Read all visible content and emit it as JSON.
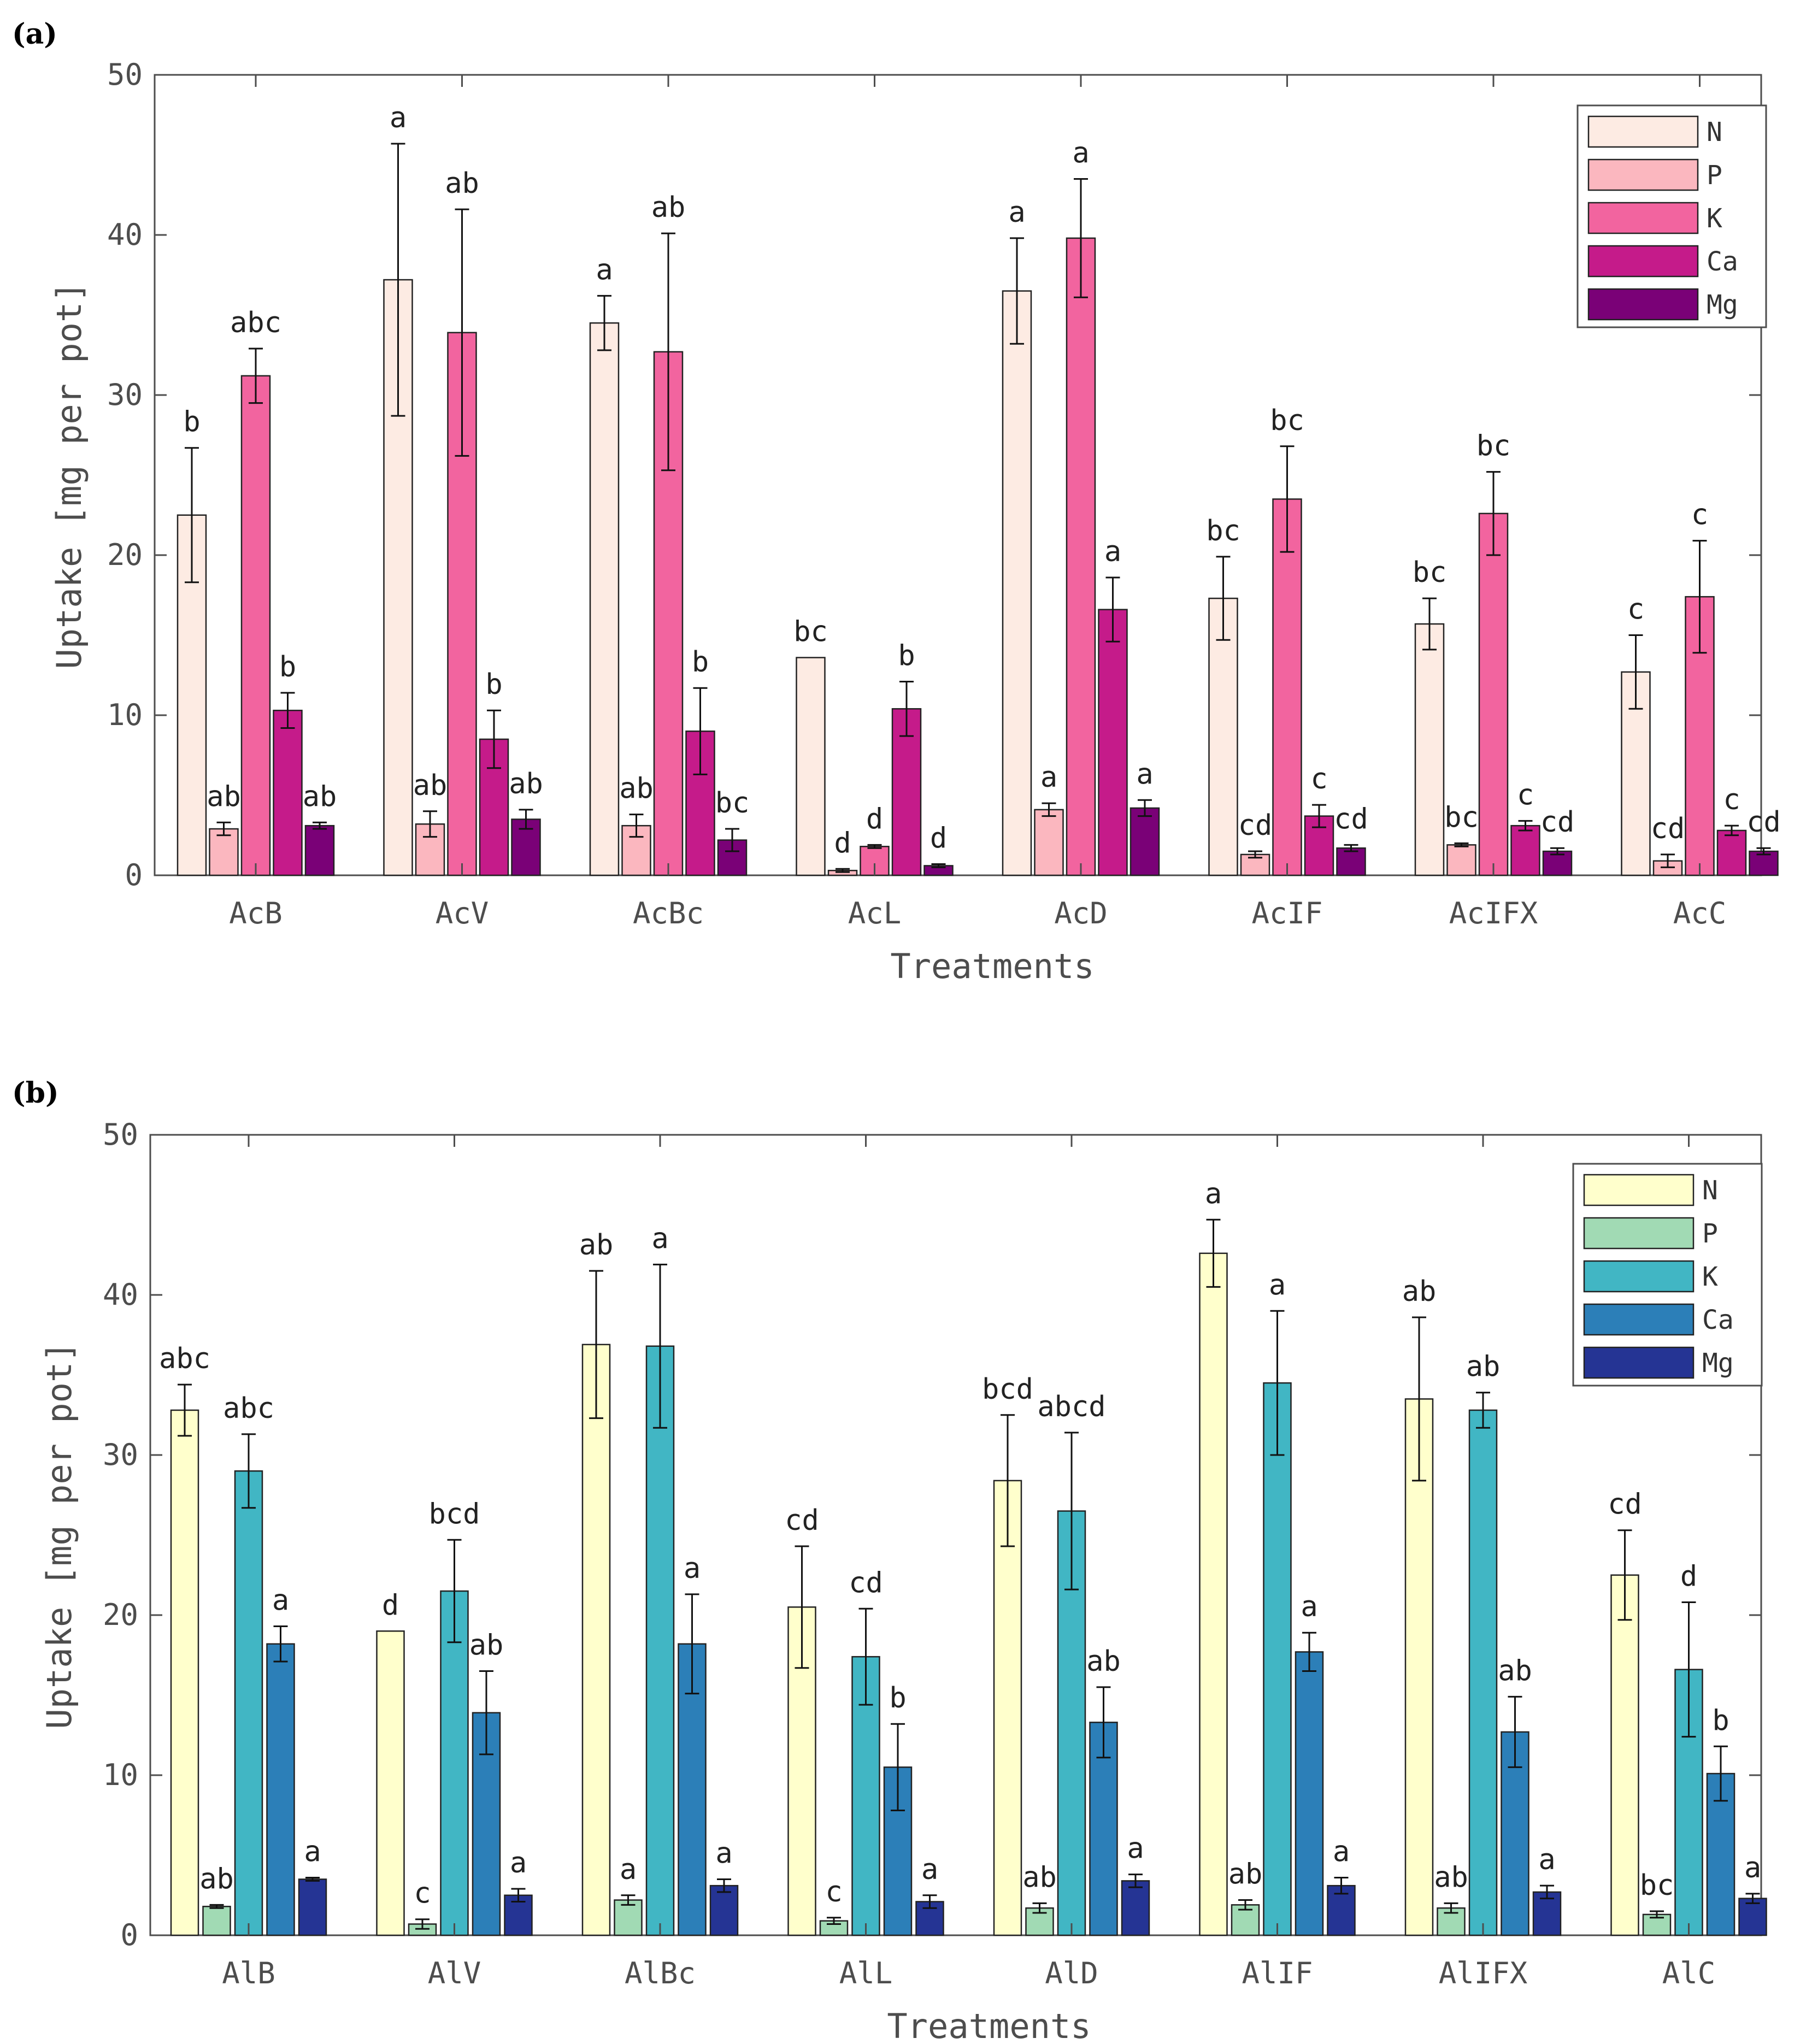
{
  "chart_data": [
    {
      "type": "bar",
      "panel_label": "(a)",
      "xlabel": "Treatments",
      "ylabel": "Uptake [mg per pot]",
      "ylim": [
        0,
        50
      ],
      "yticks": [
        "0",
        "10",
        "20",
        "30",
        "40",
        "50"
      ],
      "legend_position": "top-right",
      "categories": [
        "AcB",
        "AcV",
        "AcBc",
        "AcL",
        "AcD",
        "AcIF",
        "AcIFX",
        "AcC"
      ],
      "series": [
        {
          "name": "N",
          "color": "#fdebe3",
          "values": [
            22.5,
            37.2,
            34.5,
            13.6,
            36.5,
            17.3,
            15.7,
            12.7
          ],
          "errors": [
            4.2,
            8.5,
            1.7,
            0,
            3.3,
            2.6,
            1.6,
            2.3
          ],
          "letters": [
            "b",
            "a",
            "a",
            "bc",
            "a",
            "bc",
            "bc",
            "c"
          ]
        },
        {
          "name": "P",
          "color": "#fbb7bf",
          "values": [
            2.9,
            3.2,
            3.1,
            0.3,
            4.1,
            1.3,
            1.9,
            0.9
          ],
          "errors": [
            0.4,
            0.8,
            0.7,
            0.1,
            0.4,
            0.2,
            0.1,
            0.4
          ],
          "letters": [
            "ab",
            "ab",
            "ab",
            "d",
            "a",
            "cd",
            "bc",
            "cd"
          ]
        },
        {
          "name": "K",
          "color": "#f2649f",
          "values": [
            31.2,
            33.9,
            32.7,
            1.8,
            39.8,
            23.5,
            22.6,
            17.4
          ],
          "errors": [
            1.7,
            7.7,
            7.4,
            0.1,
            3.7,
            3.3,
            2.6,
            3.5
          ],
          "letters": [
            "abc",
            "ab",
            "ab",
            "d",
            "a",
            "bc",
            "bc",
            "c"
          ]
        },
        {
          "name": "Ca",
          "color": "#c51b8a",
          "values": [
            10.3,
            8.5,
            9.0,
            10.4,
            16.6,
            3.7,
            3.1,
            2.8
          ],
          "errors": [
            1.1,
            1.8,
            2.7,
            1.7,
            2.0,
            0.7,
            0.3,
            0.3
          ],
          "letters": [
            "b",
            "b",
            "b",
            "b",
            "a",
            "c",
            "c",
            "c"
          ]
        },
        {
          "name": "Mg",
          "color": "#7a0177",
          "values": [
            3.1,
            3.5,
            2.2,
            0.6,
            4.2,
            1.7,
            1.5,
            1.5
          ],
          "errors": [
            0.2,
            0.6,
            0.7,
            0.1,
            0.5,
            0.2,
            0.2,
            0.2
          ],
          "letters": [
            "ab",
            "ab",
            "bc",
            "d",
            "a",
            "cd",
            "cd",
            "cd"
          ]
        }
      ]
    },
    {
      "type": "bar",
      "panel_label": "(b)",
      "xlabel": "Treatments",
      "ylabel": "Uptake [mg per pot]",
      "ylim": [
        0,
        50
      ],
      "yticks": [
        "0",
        "10",
        "20",
        "30",
        "40",
        "50"
      ],
      "legend_position": "top-right",
      "categories": [
        "AlB",
        "AlV",
        "AlBc",
        "AlL",
        "AlD",
        "AlIF",
        "AlIFX",
        "AlC"
      ],
      "series": [
        {
          "name": "N",
          "color": "#ffffcc",
          "values": [
            32.8,
            19.0,
            36.9,
            20.5,
            28.4,
            42.6,
            33.5,
            22.5
          ],
          "errors": [
            1.6,
            0,
            4.6,
            3.8,
            4.1,
            2.1,
            5.1,
            2.8
          ],
          "letters": [
            "abc",
            "d",
            "ab",
            "cd",
            "bcd",
            "a",
            "ab",
            "cd"
          ]
        },
        {
          "name": "P",
          "color": "#a1dab4",
          "values": [
            1.8,
            0.7,
            2.2,
            0.9,
            1.7,
            1.9,
            1.7,
            1.3
          ],
          "errors": [
            0.1,
            0.3,
            0.3,
            0.2,
            0.3,
            0.3,
            0.3,
            0.2
          ],
          "letters": [
            "ab",
            "c",
            "a",
            "c",
            "ab",
            "ab",
            "ab",
            "bc"
          ]
        },
        {
          "name": "K",
          "color": "#41b6c4",
          "values": [
            29.0,
            21.5,
            36.8,
            17.4,
            26.5,
            34.5,
            32.8,
            16.6
          ],
          "errors": [
            2.3,
            3.2,
            5.1,
            3.0,
            4.9,
            4.5,
            1.1,
            4.2
          ],
          "letters": [
            "abc",
            "bcd",
            "a",
            "cd",
            "abcd",
            "a",
            "ab",
            "d"
          ]
        },
        {
          "name": "Ca",
          "color": "#2c7fb8",
          "values": [
            18.2,
            13.9,
            18.2,
            10.5,
            13.3,
            17.7,
            12.7,
            10.1
          ],
          "errors": [
            1.1,
            2.6,
            3.1,
            2.7,
            2.2,
            1.2,
            2.2,
            1.7
          ],
          "letters": [
            "a",
            "ab",
            "a",
            "b",
            "ab",
            "a",
            "ab",
            "b"
          ]
        },
        {
          "name": "Mg",
          "color": "#253494",
          "values": [
            3.5,
            2.5,
            3.1,
            2.1,
            3.4,
            3.1,
            2.7,
            2.3
          ],
          "errors": [
            0.1,
            0.4,
            0.4,
            0.4,
            0.4,
            0.5,
            0.4,
            0.3
          ],
          "letters": [
            "a",
            "a",
            "a",
            "a",
            "a",
            "a",
            "a",
            "a"
          ]
        }
      ]
    }
  ]
}
